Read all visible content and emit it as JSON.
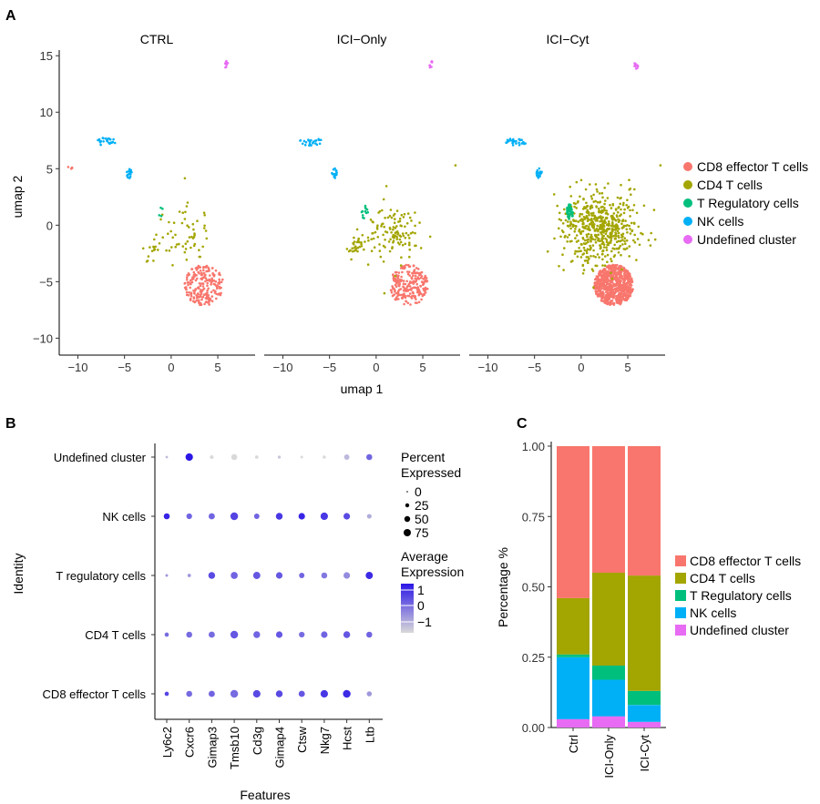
{
  "panels": {
    "a": "A",
    "b": "B",
    "c": "C"
  },
  "colors": {
    "cd8": "#F8766D",
    "cd4": "#A3A500",
    "treg": "#00BF7D",
    "nk": "#00B0F6",
    "undef": "#E76BF3"
  },
  "chart_data": [
    {
      "type": "scatter",
      "facets": [
        "CTRL",
        "ICI−Only",
        "ICI−Cyt"
      ],
      "xlabel": "umap 1",
      "ylabel": "umap 2",
      "xlim": [
        -12,
        9
      ],
      "ylim": [
        -11.5,
        15.5
      ],
      "xticks": [
        "−10",
        "−5",
        "0",
        "5"
      ],
      "yticks": [
        "−10",
        "−5",
        "0",
        "5",
        "10",
        "15"
      ],
      "legend": [
        "CD8 effector T cells",
        "CD4 T cells",
        "T Regulatory cells",
        "NK cells",
        "Undefined cluster"
      ],
      "clusters": {
        "cd8": {
          "cx": 3.5,
          "cy": -5.3,
          "rx": 2.1,
          "ry": 1.8
        },
        "cd4": {
          "cx": 1.8,
          "cy": -1.2,
          "rx": 3.6,
          "ry": 2.0
        },
        "treg": {
          "cx": -1.2,
          "cy": 1.2,
          "rx": 0.35,
          "ry": 0.7
        },
        "nk_a": {
          "cx": -7.0,
          "cy": 7.4,
          "rx": 1.2,
          "ry": 0.35
        },
        "nk_b": {
          "cx": -4.5,
          "cy": 4.6,
          "rx": 0.3,
          "ry": 0.45
        },
        "undef_top": {
          "cx": 5.9,
          "cy": 14.2,
          "rx": 0.2,
          "ry": 0.35
        },
        "undef_left": {
          "cx": -10.9,
          "cy": 5.1,
          "rx": 0.3,
          "ry": 0.2
        }
      },
      "cell_counts": {
        "CTRL": {
          "cd8": 220,
          "cd4": 70,
          "treg": 4,
          "nk": 40,
          "undef": 12
        },
        "ICI−Only": {
          "cd8": 230,
          "cd4": 150,
          "treg": 12,
          "nk": 40,
          "undef": 10
        },
        "ICI−Cyt": {
          "cd8": 700,
          "cd4": 550,
          "treg": 40,
          "nk": 45,
          "undef": 15
        }
      }
    },
    {
      "type": "dot",
      "xlabel": "Features",
      "ylabel": "Identity",
      "features": [
        "Ly6c2",
        "Cxcr6",
        "Gimap3",
        "Tmsb10",
        "Cd3g",
        "Gimap4",
        "Ctsw",
        "Nkg7",
        "Hcst",
        "Ltb"
      ],
      "identities": [
        "Undefined cluster",
        "NK cells",
        "T regulatory cells",
        "CD4 T cells",
        "CD8 effector T cells"
      ],
      "percent": [
        [
          2,
          70,
          10,
          40,
          8,
          5,
          3,
          6,
          30,
          40
        ],
        [
          40,
          35,
          45,
          75,
          30,
          55,
          50,
          70,
          50,
          20
        ],
        [
          3,
          8,
          55,
          60,
          65,
          50,
          30,
          40,
          50,
          65
        ],
        [
          15,
          40,
          45,
          75,
          55,
          50,
          35,
          50,
          55,
          40
        ],
        [
          15,
          40,
          45,
          75,
          70,
          55,
          45,
          70,
          75,
          25
        ]
      ],
      "expression": [
        [
          -1,
          1.5,
          -1.5,
          -1.5,
          -1.5,
          -1.2,
          -1.5,
          -1.5,
          -1.0,
          0.3
        ],
        [
          1.3,
          0.3,
          0.3,
          0.8,
          0.3,
          1.0,
          1.3,
          1.0,
          0.7,
          -0.8
        ],
        [
          -0.5,
          -0.5,
          0.7,
          0.3,
          0.5,
          0.5,
          0.3,
          0,
          -0.3,
          1.2
        ],
        [
          0.2,
          0.2,
          0.2,
          0.5,
          0.3,
          0.5,
          0.2,
          0.3,
          0.5,
          0.3
        ],
        [
          0.8,
          0.2,
          0.3,
          0.2,
          0.7,
          0.7,
          0.5,
          1.0,
          1.2,
          -0.5
        ]
      ],
      "size_legend_title": [
        "Percent",
        "Expressed"
      ],
      "size_legend": [
        "0",
        "25",
        "50",
        "75"
      ],
      "color_legend_title": [
        "Average",
        "Expression"
      ],
      "color_legend_ticks": [
        "1",
        "0",
        "−1"
      ],
      "expr_range": [
        -1.5,
        1.5
      ]
    },
    {
      "type": "bar",
      "stacked": true,
      "categories": [
        "Ctrl",
        "ICI-Only",
        "ICI-Cyt"
      ],
      "ylabel": "Percentage %",
      "ylim": [
        0,
        1
      ],
      "yticks": [
        "0.00",
        "0.25",
        "0.50",
        "0.75",
        "1.00"
      ],
      "series": [
        {
          "name": "Undefined cluster",
          "key": "undef",
          "values": [
            0.03,
            0.04,
            0.02
          ]
        },
        {
          "name": "NK cells",
          "key": "nk",
          "values": [
            0.22,
            0.13,
            0.06
          ]
        },
        {
          "name": "T Regulatory cells",
          "key": "treg",
          "values": [
            0.01,
            0.05,
            0.05
          ]
        },
        {
          "name": "CD4 T cells",
          "key": "cd4",
          "values": [
            0.2,
            0.33,
            0.41
          ]
        },
        {
          "name": "CD8 effector T cells",
          "key": "cd8",
          "values": [
            0.54,
            0.45,
            0.46
          ]
        }
      ],
      "legend": [
        "CD8 effector T cells",
        "CD4 T cells",
        "T Regulatory cells",
        "NK cells",
        "Undefined cluster"
      ]
    }
  ]
}
